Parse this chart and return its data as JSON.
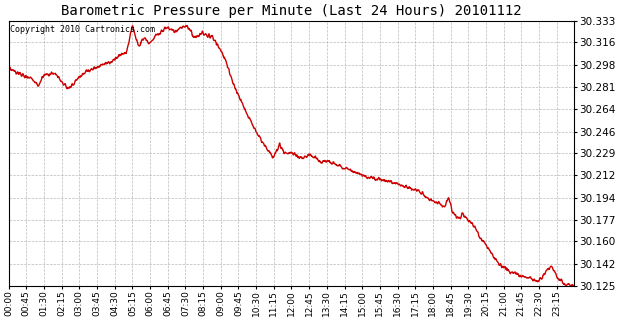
{
  "title": "Barometric Pressure per Minute (Last 24 Hours) 20101112",
  "copyright": "Copyright 2010 Cartronics.com",
  "line_color": "#cc0000",
  "background_color": "#ffffff",
  "grid_color": "#aaaaaa",
  "yticks": [
    30.125,
    30.142,
    30.16,
    30.177,
    30.194,
    30.212,
    30.229,
    30.246,
    30.264,
    30.281,
    30.298,
    30.316,
    30.333
  ],
  "ymin": 30.125,
  "ymax": 30.333,
  "xtick_labels": [
    "00:00",
    "00:45",
    "01:30",
    "02:15",
    "03:00",
    "03:45",
    "04:30",
    "05:15",
    "06:00",
    "06:45",
    "07:30",
    "08:15",
    "09:00",
    "09:45",
    "10:30",
    "11:15",
    "12:00",
    "12:45",
    "13:30",
    "14:15",
    "15:00",
    "15:45",
    "16:30",
    "17:15",
    "18:00",
    "18:45",
    "19:30",
    "20:15",
    "21:00",
    "21:45",
    "22:30",
    "23:15"
  ],
  "num_points": 1440,
  "keypoints": [
    [
      0,
      30.295
    ],
    [
      30,
      30.291
    ],
    [
      60,
      30.288
    ],
    [
      75,
      30.282
    ],
    [
      90,
      30.29
    ],
    [
      120,
      30.291
    ],
    [
      135,
      30.285
    ],
    [
      150,
      30.28
    ],
    [
      165,
      30.283
    ],
    [
      180,
      30.29
    ],
    [
      200,
      30.293
    ],
    [
      220,
      30.296
    ],
    [
      240,
      30.299
    ],
    [
      260,
      30.301
    ],
    [
      280,
      30.305
    ],
    [
      300,
      30.308
    ],
    [
      315,
      30.33
    ],
    [
      330,
      30.313
    ],
    [
      345,
      30.32
    ],
    [
      360,
      30.315
    ],
    [
      375,
      30.322
    ],
    [
      390,
      30.325
    ],
    [
      405,
      30.328
    ],
    [
      420,
      30.324
    ],
    [
      435,
      30.327
    ],
    [
      450,
      30.329
    ],
    [
      460,
      30.327
    ],
    [
      475,
      30.319
    ],
    [
      490,
      30.323
    ],
    [
      505,
      30.322
    ],
    [
      520,
      30.32
    ],
    [
      530,
      30.315
    ],
    [
      540,
      30.31
    ],
    [
      555,
      30.3
    ],
    [
      570,
      30.285
    ],
    [
      585,
      30.275
    ],
    [
      600,
      30.265
    ],
    [
      615,
      30.255
    ],
    [
      630,
      30.246
    ],
    [
      645,
      30.238
    ],
    [
      660,
      30.232
    ],
    [
      675,
      30.226
    ],
    [
      690,
      30.236
    ],
    [
      705,
      30.228
    ],
    [
      720,
      30.23
    ],
    [
      735,
      30.227
    ],
    [
      750,
      30.225
    ],
    [
      765,
      30.228
    ],
    [
      780,
      30.226
    ],
    [
      795,
      30.222
    ],
    [
      810,
      30.223
    ],
    [
      825,
      30.221
    ],
    [
      840,
      30.219
    ],
    [
      855,
      30.218
    ],
    [
      870,
      30.216
    ],
    [
      885,
      30.214
    ],
    [
      900,
      30.212
    ],
    [
      915,
      30.21
    ],
    [
      930,
      30.209
    ],
    [
      945,
      30.208
    ],
    [
      960,
      30.207
    ],
    [
      975,
      30.206
    ],
    [
      990,
      30.205
    ],
    [
      1005,
      30.203
    ],
    [
      1020,
      30.202
    ],
    [
      1035,
      30.2
    ],
    [
      1050,
      30.198
    ],
    [
      1065,
      30.194
    ],
    [
      1080,
      30.192
    ],
    [
      1095,
      30.19
    ],
    [
      1110,
      30.186
    ],
    [
      1120,
      30.194
    ],
    [
      1125,
      30.189
    ],
    [
      1130,
      30.183
    ],
    [
      1140,
      30.179
    ],
    [
      1150,
      30.178
    ],
    [
      1155,
      30.182
    ],
    [
      1160,
      30.179
    ],
    [
      1170,
      30.176
    ],
    [
      1185,
      30.172
    ],
    [
      1200,
      30.163
    ],
    [
      1215,
      30.157
    ],
    [
      1230,
      30.15
    ],
    [
      1245,
      30.143
    ],
    [
      1260,
      30.14
    ],
    [
      1275,
      30.136
    ],
    [
      1290,
      30.135
    ],
    [
      1305,
      30.133
    ],
    [
      1320,
      30.132
    ],
    [
      1335,
      30.13
    ],
    [
      1350,
      30.128
    ],
    [
      1365,
      30.135
    ],
    [
      1380,
      30.14
    ],
    [
      1390,
      30.136
    ],
    [
      1400,
      30.13
    ],
    [
      1410,
      30.128
    ],
    [
      1420,
      30.126
    ],
    [
      1430,
      30.126
    ],
    [
      1439,
      30.125
    ]
  ]
}
